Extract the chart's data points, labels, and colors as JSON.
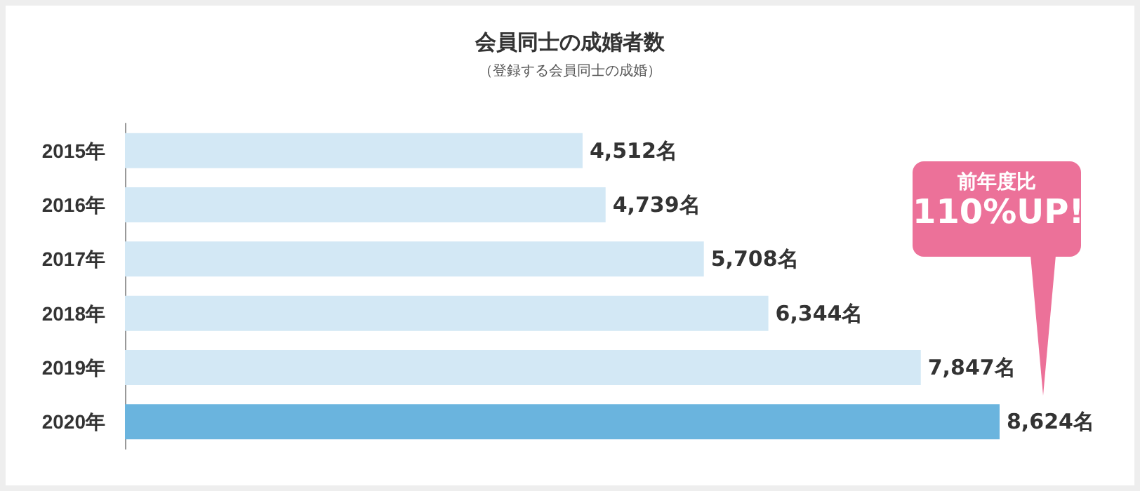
{
  "chart_data": {
    "type": "bar",
    "orientation": "horizontal",
    "title": "会員同士の成婚者数",
    "subtitle": "（登録する会員同士の成婚）",
    "categories": [
      "2015年",
      "2016年",
      "2017年",
      "2018年",
      "2019年",
      "2020年"
    ],
    "values": [
      4512,
      4739,
      5708,
      6344,
      7847,
      8624
    ],
    "colors": [
      "#d3e8f5",
      "#d3e8f5",
      "#d3e8f5",
      "#d3e8f5",
      "#d3e8f5",
      "#6ab4de"
    ],
    "value_labels": [
      "4,512名",
      "4,739名",
      "5,708名",
      "6,344名",
      "7,847名",
      "8,624名"
    ],
    "annotations": [
      "前年度比\n110%UP!"
    ]
  }
}
